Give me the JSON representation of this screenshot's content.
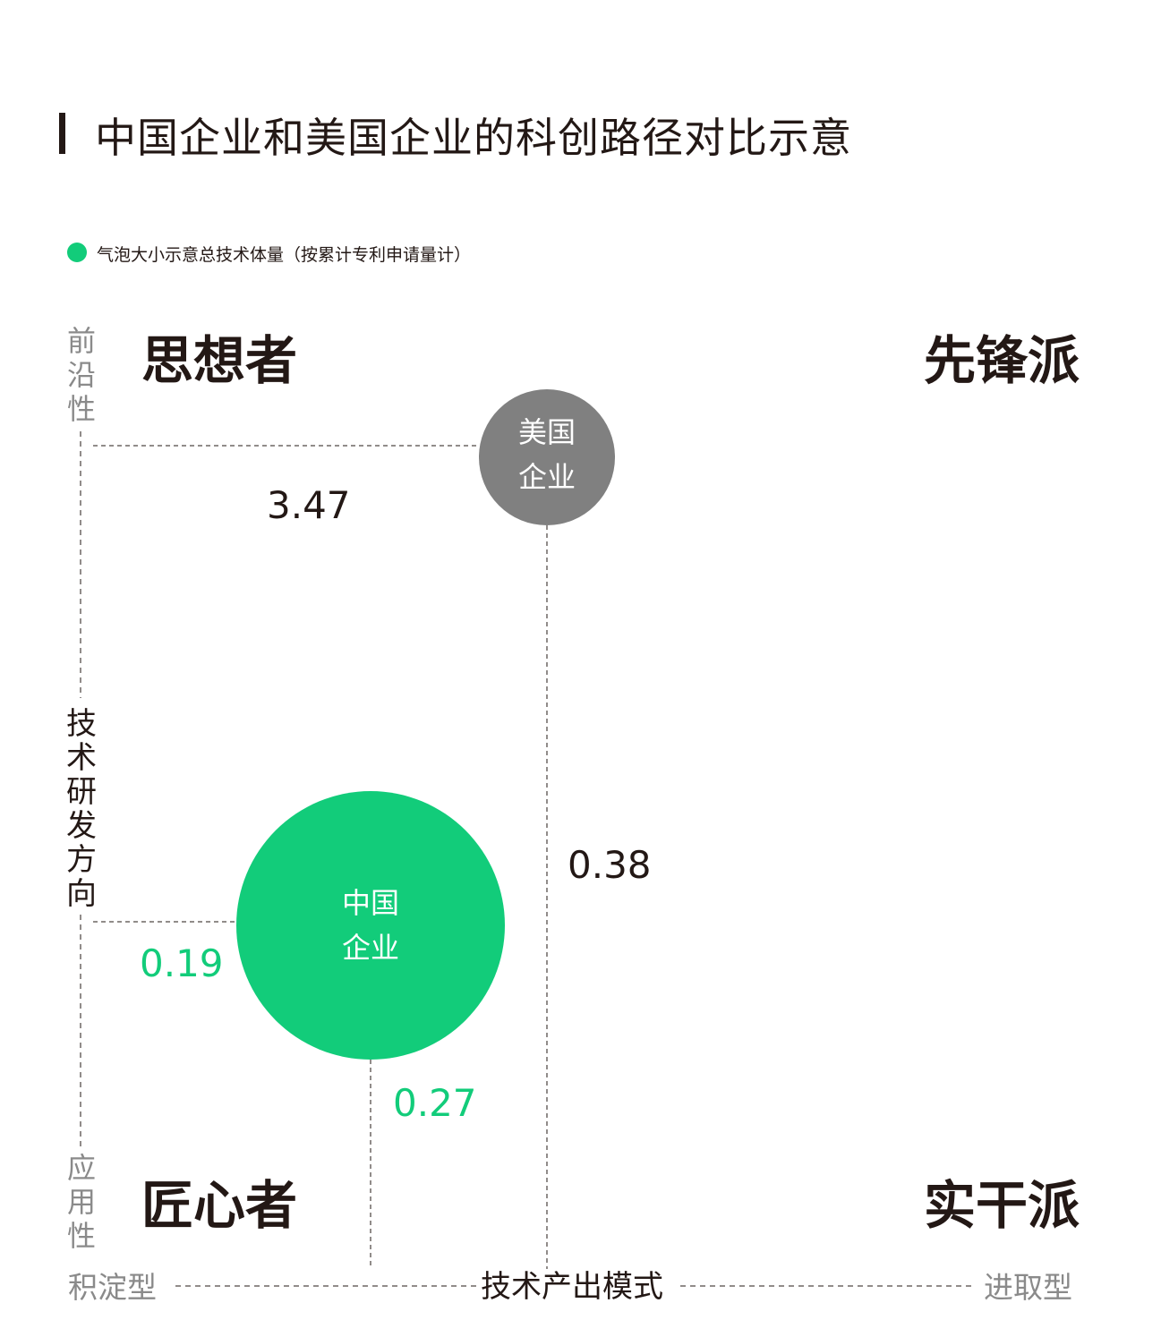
{
  "title": "中国企业和美国企业的科创路径对比示意",
  "legend": {
    "text": "气泡大小示意总技术体量（按累计专利申请量计）",
    "color": "#12cc7a"
  },
  "quadrants": {
    "top_left": "思想者",
    "top_right": "先锋派",
    "bottom_left": "匠心者",
    "bottom_right": "实干派"
  },
  "y_axis": {
    "label": "技术研发方向",
    "top": "前沿性",
    "bottom": "应用性"
  },
  "x_axis": {
    "label": "技术产出模式",
    "left": "积淀型",
    "right": "进取型"
  },
  "chart_data": {
    "type": "scatter",
    "subtype": "bubble",
    "title": "中国企业和美国企业的科创路径对比示意",
    "xlabel": "技术产出模式",
    "ylabel": "技术研发方向",
    "grid": false,
    "legend_position": "top-left",
    "points": [
      {
        "name": "美国企业",
        "line1": "美国",
        "line2": "企业",
        "x": 0.38,
        "y": 3.47,
        "x_label": "0.38",
        "y_label": "3.47",
        "color": "#808080",
        "label_color": "#231815"
      },
      {
        "name": "中国企业",
        "line1": "中国",
        "line2": "企业",
        "x": 0.27,
        "y": 0.19,
        "x_label": "0.27",
        "y_label": "0.19",
        "color": "#12cc7a",
        "label_color": "#12cc7a"
      }
    ]
  }
}
